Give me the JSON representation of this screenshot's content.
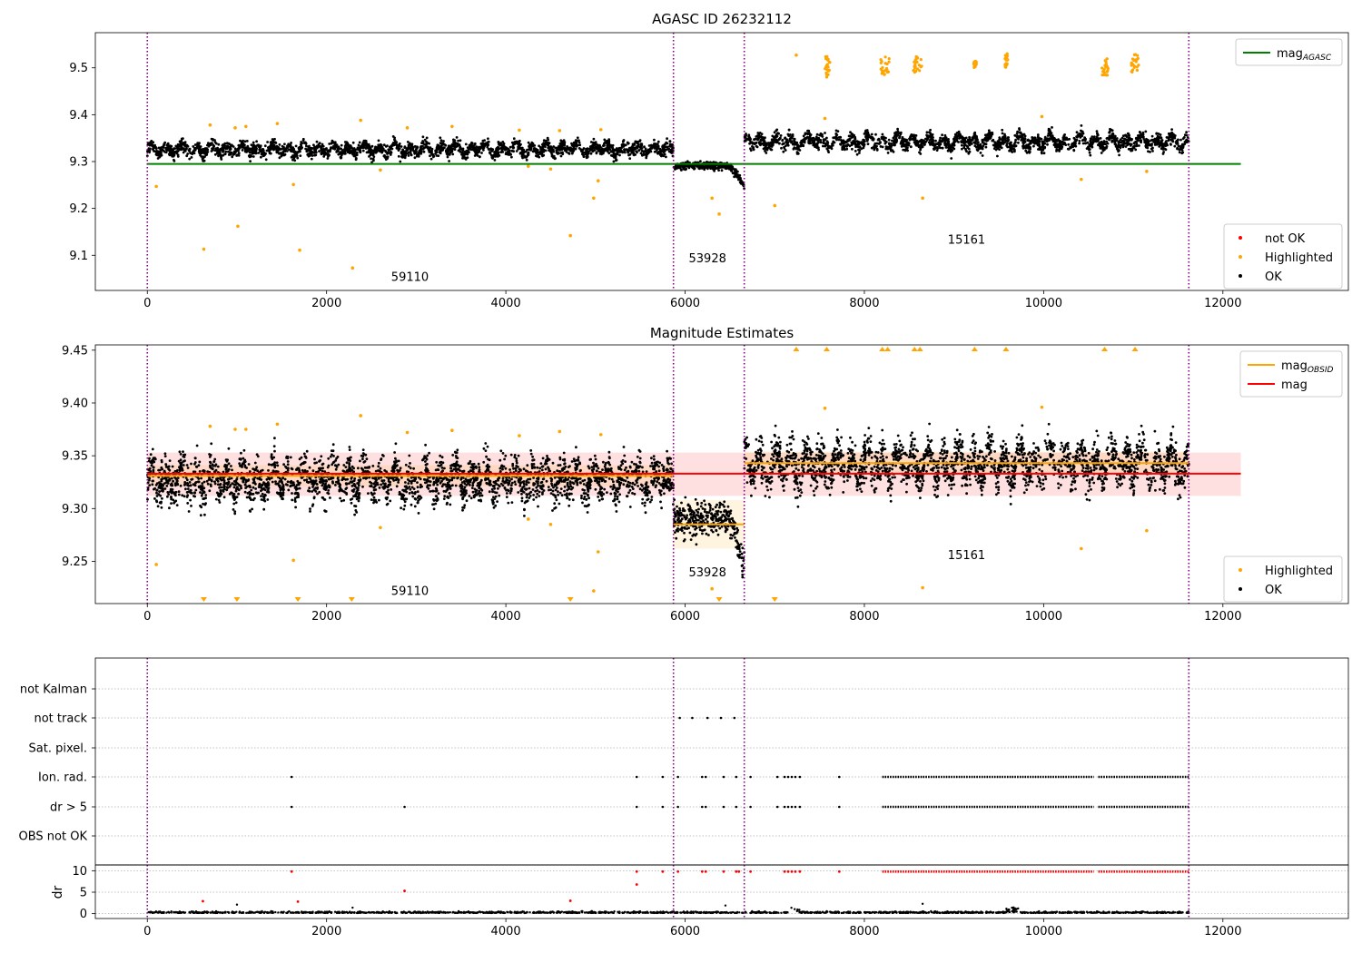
{
  "chart_data": [
    {
      "type": "scatter",
      "title": "AGASC ID 26232112",
      "xlim": [
        -580,
        13400
      ],
      "ylim": [
        9.025,
        9.575
      ],
      "xticks": [
        0,
        2000,
        4000,
        6000,
        8000,
        10000,
        12000
      ],
      "yticks": [
        9.1,
        9.2,
        9.3,
        9.4,
        9.5
      ],
      "xticklabels": [
        "0",
        "2000",
        "4000",
        "6000",
        "8000",
        "10000",
        "12000"
      ],
      "yticklabels": [
        "9.1",
        "9.2",
        "9.3",
        "9.4",
        "9.5"
      ],
      "obs_boundaries": [
        0,
        5870,
        6660,
        11620
      ],
      "obs_labels": [
        {
          "text": "59110",
          "x": 2930,
          "y": 9.045
        },
        {
          "text": "53928",
          "x": 6250,
          "y": 9.085
        },
        {
          "text": "15161",
          "x": 9140,
          "y": 9.125
        }
      ],
      "lines": [
        {
          "name": "mag",
          "subscript": "AGASC",
          "color": "#008000",
          "x": [
            0,
            12200
          ],
          "y": [
            9.295,
            9.295
          ]
        }
      ],
      "legend_upper": [
        {
          "label": "mag",
          "subscript": "AGASC",
          "kind": "line",
          "color": "#008000"
        }
      ],
      "legend_lower": [
        {
          "label": "not OK",
          "kind": "marker",
          "color": "#ff0000"
        },
        {
          "label": "Highlighted",
          "kind": "marker",
          "color": "#ffa500"
        },
        {
          "label": "OK",
          "kind": "marker",
          "color": "#000000"
        }
      ],
      "ok_segments": [
        {
          "x0": 0,
          "x1": 5870,
          "mean": 9.326,
          "amp": 0.008,
          "spread": 0.01
        },
        {
          "x0": 5870,
          "x1": 6450,
          "mean": 9.292,
          "amp": 0.0,
          "spread": 0.006
        },
        {
          "x0": 6450,
          "x1": 6660,
          "mean_start": 9.29,
          "mean_end": 9.245,
          "spread": 0.006
        },
        {
          "x0": 6660,
          "x1": 11620,
          "mean": 9.342,
          "amp": 0.01,
          "spread": 0.011
        }
      ],
      "highlighted_points": [
        [
          100,
          9.247
        ],
        [
          630,
          9.113
        ],
        [
          700,
          9.378
        ],
        [
          980,
          9.372
        ],
        [
          1010,
          9.162
        ],
        [
          1100,
          9.375
        ],
        [
          1450,
          9.381
        ],
        [
          1630,
          9.251
        ],
        [
          1700,
          9.111
        ],
        [
          2290,
          9.073
        ],
        [
          2380,
          9.388
        ],
        [
          2600,
          9.282
        ],
        [
          2900,
          9.372
        ],
        [
          3400,
          9.375
        ],
        [
          4150,
          9.367
        ],
        [
          4250,
          9.29
        ],
        [
          4600,
          9.366
        ],
        [
          4500,
          9.284
        ],
        [
          4720,
          9.142
        ],
        [
          4980,
          9.222
        ],
        [
          5030,
          9.259
        ],
        [
          5060,
          9.368
        ],
        [
          6300,
          9.222
        ],
        [
          6380,
          9.188
        ],
        [
          7000,
          9.206
        ],
        [
          7240,
          9.527
        ],
        [
          7560,
          9.392
        ],
        [
          8650,
          9.222
        ],
        [
          9980,
          9.396
        ],
        [
          10420,
          9.262
        ],
        [
          11150,
          9.279
        ]
      ],
      "highlighted_clusters": [
        {
          "x0": 7560,
          "x1": 7620,
          "y0": 9.48,
          "y1": 9.53
        },
        {
          "x0": 8180,
          "x1": 8280,
          "y0": 9.485,
          "y1": 9.525
        },
        {
          "x0": 8540,
          "x1": 8640,
          "y0": 9.49,
          "y1": 9.525
        },
        {
          "x0": 9220,
          "x1": 9250,
          "y0": 9.5,
          "y1": 9.515
        },
        {
          "x0": 9570,
          "x1": 9600,
          "y0": 9.5,
          "y1": 9.53
        },
        {
          "x0": 10650,
          "x1": 10720,
          "y0": 9.48,
          "y1": 9.52
        },
        {
          "x0": 10980,
          "x1": 11060,
          "y0": 9.485,
          "y1": 9.53
        }
      ]
    },
    {
      "type": "scatter",
      "title": "Magnitude Estimates",
      "xlim": [
        -580,
        13400
      ],
      "ylim": [
        9.21,
        9.455
      ],
      "xticks": [
        0,
        2000,
        4000,
        6000,
        8000,
        10000,
        12000
      ],
      "yticks": [
        9.25,
        9.3,
        9.35,
        9.4,
        9.45
      ],
      "xticklabels": [
        "0",
        "2000",
        "4000",
        "6000",
        "8000",
        "10000",
        "12000"
      ],
      "yticklabels": [
        "9.25",
        "9.30",
        "9.35",
        "9.40",
        "9.45"
      ],
      "obs_boundaries": [
        0,
        5870,
        6660,
        11620
      ],
      "obs_labels": [
        {
          "text": "59110",
          "x": 2930,
          "y": 9.218
        },
        {
          "text": "53928",
          "x": 6250,
          "y": 9.236
        },
        {
          "text": "15161",
          "x": 9140,
          "y": 9.252
        }
      ],
      "mag_band": {
        "x0": 0,
        "x1": 12200,
        "y0": 9.312,
        "y1": 9.353,
        "color": "#ff0000"
      },
      "obsid_bands": [
        {
          "x0": 0,
          "x1": 5870,
          "y0": 9.321,
          "y1": 9.341
        },
        {
          "x0": 5870,
          "x1": 6660,
          "y0": 9.262,
          "y1": 9.308
        },
        {
          "x0": 6660,
          "x1": 11620,
          "y0": 9.332,
          "y1": 9.354
        }
      ],
      "lines": [
        {
          "name": "mag",
          "subscript": "OBSID",
          "color": "#ffa500",
          "segments": [
            [
              0,
              5870,
              9.331
            ],
            [
              5870,
              6660,
              9.285
            ],
            [
              6660,
              11620,
              9.343
            ]
          ]
        },
        {
          "name": "mag",
          "color": "#ff0000",
          "segments": [
            [
              0,
              12200,
              9.333
            ]
          ]
        }
      ],
      "legend_upper": [
        {
          "label": "mag",
          "subscript": "OBSID",
          "kind": "line",
          "color": "#ffa500"
        },
        {
          "label": "mag",
          "kind": "line",
          "color": "#ff0000"
        }
      ],
      "legend_lower": [
        {
          "label": "Highlighted",
          "kind": "marker",
          "color": "#ffa500"
        },
        {
          "label": "OK",
          "kind": "marker",
          "color": "#000000"
        }
      ],
      "ok_segments": [
        {
          "x0": 0,
          "x1": 5870,
          "mean": 9.327,
          "amp": 0.009,
          "spread": 0.014
        },
        {
          "x0": 5870,
          "x1": 6450,
          "mean": 9.29,
          "amp": 0.0,
          "spread": 0.012
        },
        {
          "x0": 6450,
          "x1": 6660,
          "mean_start": 9.29,
          "mean_end": 9.24,
          "spread": 0.01
        },
        {
          "x0": 6660,
          "x1": 11620,
          "mean": 9.342,
          "amp": 0.011,
          "spread": 0.014
        }
      ],
      "highlighted_points": [
        [
          100,
          9.247
        ],
        [
          700,
          9.378
        ],
        [
          980,
          9.375
        ],
        [
          1100,
          9.375
        ],
        [
          1450,
          9.38
        ],
        [
          1630,
          9.251
        ],
        [
          2380,
          9.388
        ],
        [
          2600,
          9.282
        ],
        [
          2900,
          9.372
        ],
        [
          3400,
          9.374
        ],
        [
          4150,
          9.369
        ],
        [
          4250,
          9.29
        ],
        [
          4500,
          9.285
        ],
        [
          4600,
          9.373
        ],
        [
          4980,
          9.222
        ],
        [
          5030,
          9.259
        ],
        [
          5060,
          9.37
        ],
        [
          6300,
          9.224
        ],
        [
          7560,
          9.395
        ],
        [
          8650,
          9.225
        ],
        [
          9980,
          9.396
        ],
        [
          10420,
          9.262
        ],
        [
          11150,
          9.279
        ]
      ],
      "clipped_low_x": [
        630,
        1000,
        1680,
        2280,
        4720,
        6380,
        7000
      ],
      "clipped_high_x": [
        7240,
        7580,
        8200,
        8260,
        8560,
        8620,
        9230,
        9580,
        10680,
        11020
      ]
    },
    {
      "type": "scatter",
      "title": "",
      "xlim": [
        -580,
        13400
      ],
      "xticks": [
        0,
        2000,
        4000,
        6000,
        8000,
        10000,
        12000
      ],
      "xticklabels": [
        "0",
        "2000",
        "4000",
        "6000",
        "8000",
        "10000",
        "12000"
      ],
      "obs_boundaries": [
        0,
        5870,
        6660,
        11620
      ],
      "flag_rows": [
        "not Kalman",
        "not track",
        "Sat. pixel.",
        "Ion. rad.",
        "dr > 5",
        "OBS not OK"
      ],
      "flag_points": {
        "not track": [
          5940,
          6080,
          6250,
          6400,
          6550
        ],
        "Ion. rad.": [
          1610,
          5460,
          5750,
          5920,
          6190,
          6230,
          6430,
          6570,
          6730,
          7030,
          7110,
          7150,
          7190,
          7230,
          7280,
          7720
        ],
        "dr > 5": [
          1610,
          2870,
          5460,
          5750,
          5920,
          6190,
          6230,
          6430,
          6570,
          6730,
          7030,
          7110,
          7150,
          7190,
          7230,
          7280,
          7720
        ]
      },
      "flag_dense_ranges": [
        [
          8200,
          10560
        ],
        [
          10610,
          11620
        ]
      ],
      "dr_ylabel": "dr",
      "dr_ylim": [
        -0.5,
        10.5
      ],
      "dr_yticks": [
        0,
        5,
        10
      ],
      "dr_yticklabels": [
        "0",
        "5",
        "10"
      ],
      "dr_notok_points": [
        [
          1610,
          9.8
        ],
        [
          620,
          2.9
        ],
        [
          1680,
          2.8
        ],
        [
          2870,
          5.3
        ],
        [
          4720,
          3.0
        ],
        [
          5460,
          6.8
        ],
        [
          5460,
          9.8
        ],
        [
          5750,
          9.8
        ],
        [
          5920,
          9.8
        ],
        [
          6190,
          9.8
        ],
        [
          6230,
          9.8
        ],
        [
          6430,
          9.8
        ],
        [
          6570,
          9.8
        ],
        [
          6600,
          9.8
        ],
        [
          6730,
          9.8
        ],
        [
          7110,
          9.8
        ],
        [
          7150,
          9.8
        ],
        [
          7190,
          9.8
        ],
        [
          7230,
          9.8
        ],
        [
          7280,
          9.8
        ],
        [
          7720,
          9.8
        ]
      ],
      "dr_notok_ranges": [
        [
          8200,
          10560
        ],
        [
          10610,
          11620
        ]
      ],
      "dr_ok_points": [
        [
          1000,
          2.1
        ],
        [
          2290,
          1.4
        ],
        [
          6450,
          1.9
        ],
        [
          8650,
          2.3
        ]
      ]
    }
  ]
}
